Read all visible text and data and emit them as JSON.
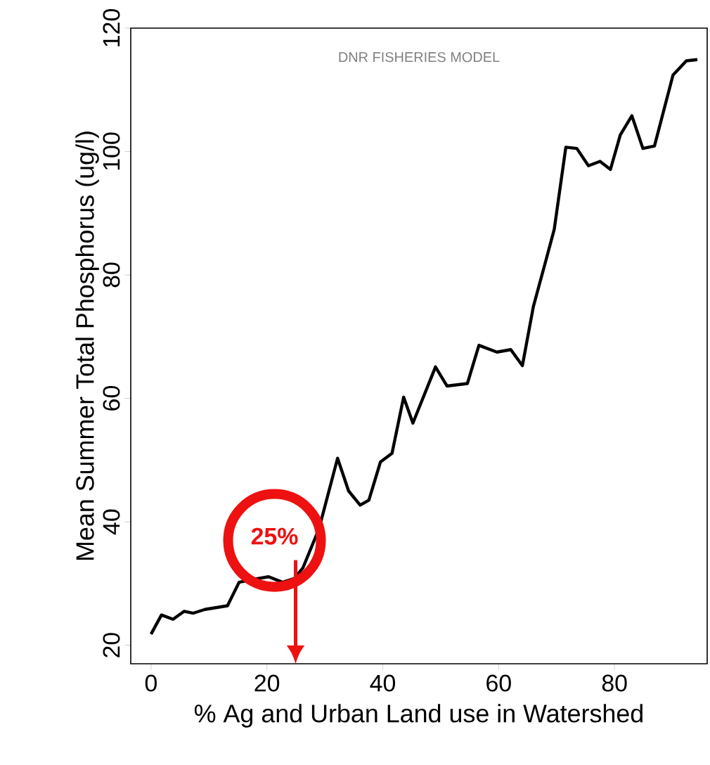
{
  "chart_data": {
    "type": "line",
    "xlabel": "% Ag and Urban Land use in Watershed",
    "ylabel": "Mean Summer Total Phosphorus (ug/l)",
    "annotations": [
      "DNR FISHERIES MODEL",
      "25%"
    ],
    "x": [
      0,
      1.8,
      3.8,
      5.7,
      7.3,
      9.3,
      13.2,
      15.2,
      17.2,
      20.3,
      22.7,
      24.7,
      26.2,
      29.0,
      32.2,
      34.1,
      36.1,
      37.6,
      39.6,
      41.6,
      43.6,
      45.2,
      49.1,
      51.1,
      54.6,
      56.6,
      59.7,
      62.1,
      64.1,
      66.0,
      68.0,
      69.6,
      71.6,
      73.5,
      75.5,
      77.5,
      79.3,
      81.0,
      83.0,
      84.9,
      86.9,
      90.1,
      92.4,
      94.3
    ],
    "values": [
      21.8,
      24.9,
      24.2,
      25.5,
      25.2,
      25.8,
      26.4,
      30.2,
      30.6,
      31.1,
      30.2,
      30.8,
      32.5,
      38.9,
      50.3,
      45,
      42.7,
      43.5,
      49.7,
      51.1,
      60.2,
      56,
      65.1,
      62,
      62.4,
      68.6,
      67.5,
      67.9,
      65.3,
      74.9,
      81.8,
      87.4,
      100.7,
      100.5,
      97.7,
      98.4,
      97.1,
      102.7,
      105.8,
      100.5,
      100.9,
      112.4,
      114.7,
      114.9
    ],
    "color": "#000000",
    "xlim": [
      -3.5,
      96
    ],
    "ylim": [
      17,
      120
    ],
    "xticks": [
      0,
      20,
      40,
      60,
      80
    ],
    "yticks": [
      20,
      40,
      60,
      80,
      100,
      120
    ]
  }
}
